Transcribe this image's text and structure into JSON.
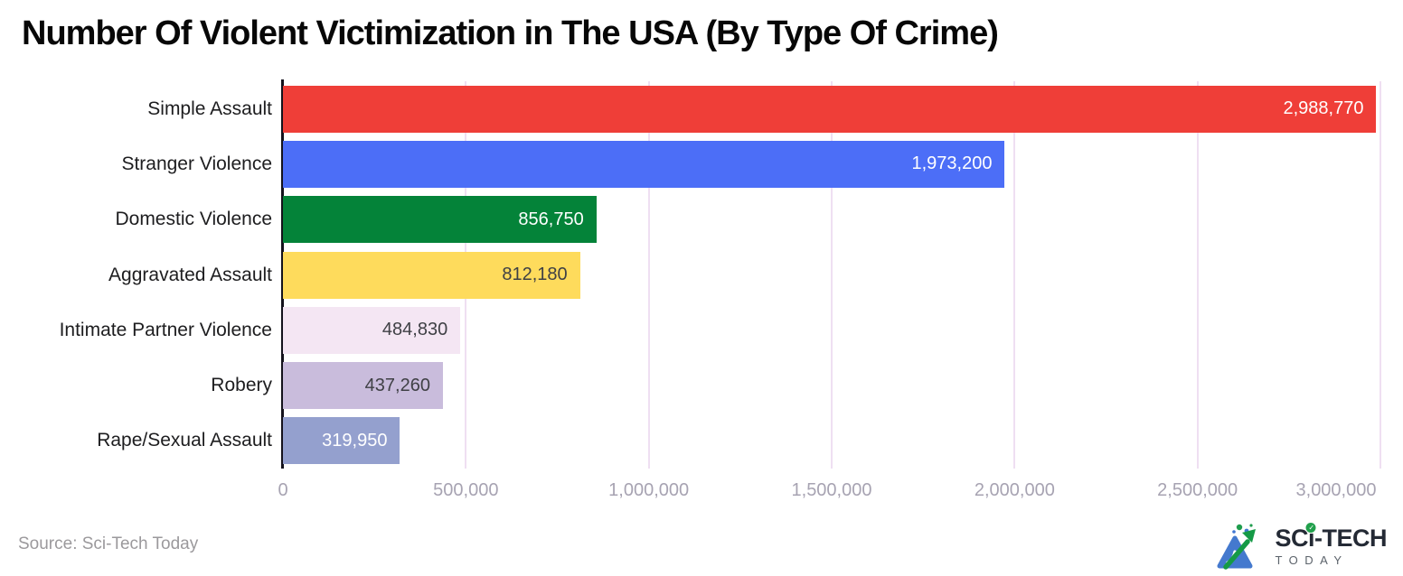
{
  "title": "Number Of Violent Victimization in The USA (By Type Of Crime)",
  "source_note": "Source: Sci-Tech Today",
  "logo": {
    "part_sc": "SC",
    "part_i": "i",
    "part_tech": "-TECH",
    "today": "TODAY",
    "check": "✓"
  },
  "chart_data": {
    "type": "bar",
    "orientation": "horizontal",
    "title": "Number Of Violent Victimization in The USA (By Type Of Crime)",
    "categories": [
      "Simple Assault",
      "Stranger Violence",
      "Domestic Violence",
      "Aggravated Assault",
      "Intimate Partner Violence",
      "Robery",
      "Rape/Sexual Assault"
    ],
    "values": [
      2988770,
      1973200,
      856750,
      812180,
      484830,
      437260,
      319950
    ],
    "value_labels": [
      "2,988,770",
      "1,973,200",
      "856,750",
      "812,180",
      "484,830",
      "437,260",
      "319,950"
    ],
    "bar_colors": [
      "#ef3e38",
      "#4c6ef7",
      "#048339",
      "#fedb5c",
      "#f4e6f3",
      "#c9bcdc",
      "#94a0ce"
    ],
    "value_label_colors": [
      "#ffffff",
      "#ffffff",
      "#ffffff",
      "#3f4045",
      "#3f4045",
      "#3f4045",
      "#ffffff"
    ],
    "xlim": [
      0,
      3000000
    ],
    "x_ticks": [
      0,
      500000,
      1000000,
      1500000,
      2000000,
      2500000,
      3000000
    ],
    "x_tick_labels": [
      "0",
      "500,000",
      "1,000,000",
      "1,500,000",
      "2,000,000",
      "2,500,000",
      "3,000,000"
    ],
    "xlabel": "",
    "ylabel": "",
    "grid": true,
    "gridline_color": "#efdff2",
    "axis_line_color": "#14121c",
    "tick_label_color": "#a7a3b2",
    "category_label_color": "#1d1d1f",
    "legend_position": "none"
  }
}
